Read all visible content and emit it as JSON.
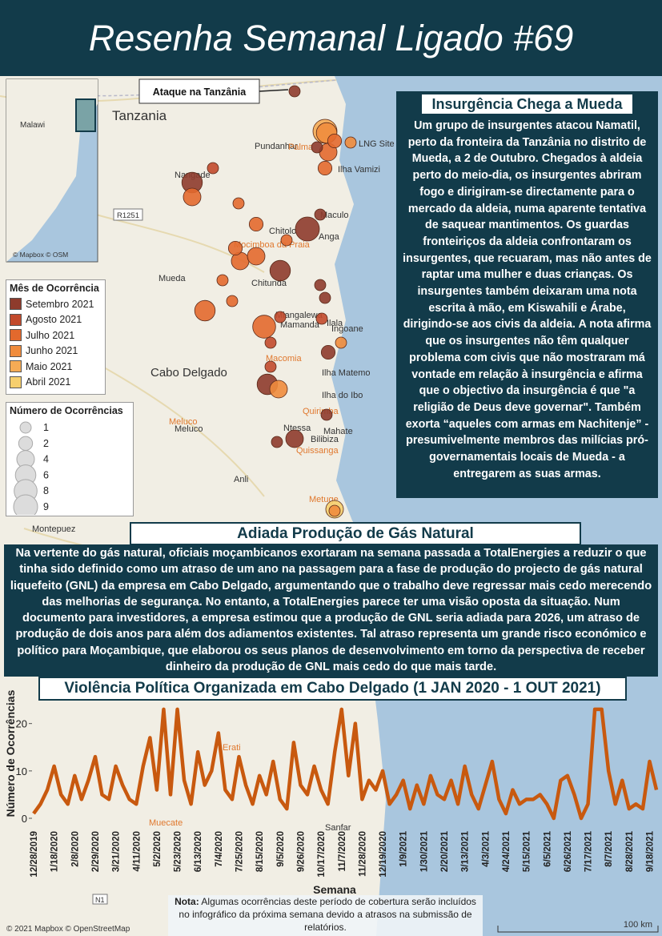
{
  "header": {
    "title": "Resenha Semanal Ligado #69"
  },
  "map": {
    "annotation": "Ataque na Tanzânia",
    "labels": [
      "Tanzania",
      "Malawi",
      "Pundanhar",
      "Palma",
      "LNG Site",
      "Ilha Vamizi",
      "Nangade",
      "R1251",
      "Maculo",
      "Chitolo",
      "Mocimboa da Praia",
      "Anga",
      "Mueda",
      "Chitunda",
      "Miangalewa",
      "Mamanda",
      "Macomia",
      "Ilala",
      "Ingoane",
      "Cabo Delgado",
      "Ilha Matemo",
      "Ilha do Ibo",
      "Quirimba",
      "Mahate",
      "Meluco",
      "Meluco",
      "Ntessa",
      "Bilibiza",
      "Quissanga",
      "Anli",
      "Metuge",
      "Montepuez",
      "Erati",
      "Muecate",
      "Sanfar",
      "N1"
    ],
    "inset_attribution": "© Mapbox © OSM",
    "attribution": "© 2021 Mapbox © OpenStreetMap",
    "scale": "100 km",
    "events": [
      {
        "lon": 40.29,
        "lat": -10.77,
        "month": "Setembro 2021",
        "count": 1
      },
      {
        "lon": 40.48,
        "lat": -11.02,
        "month": "Maio 2021",
        "count": 9
      },
      {
        "lon": 40.49,
        "lat": -11.03,
        "month": "Junho 2021",
        "count": 6
      },
      {
        "lon": 40.5,
        "lat": -11.15,
        "month": "Julho 2021",
        "count": 4
      },
      {
        "lon": 40.64,
        "lat": -11.09,
        "month": "Junho 2021",
        "count": 1
      },
      {
        "lon": 40.54,
        "lat": -11.08,
        "month": "Julho 2021",
        "count": 2
      },
      {
        "lon": 40.48,
        "lat": -11.25,
        "month": "Julho 2021",
        "count": 2
      },
      {
        "lon": 40.43,
        "lat": -11.12,
        "month": "Setembro 2021",
        "count": 1
      },
      {
        "lon": 39.78,
        "lat": -11.25,
        "month": "Agosto 2021",
        "count": 1
      },
      {
        "lon": 39.65,
        "lat": -11.34,
        "month": "Setembro 2021",
        "count": 6
      },
      {
        "lon": 39.65,
        "lat": -11.43,
        "month": "Julho 2021",
        "count": 4
      },
      {
        "lon": 39.94,
        "lat": -11.47,
        "month": "Julho 2021",
        "count": 1
      },
      {
        "lon": 40.45,
        "lat": -11.54,
        "month": "Setembro 2021",
        "count": 1
      },
      {
        "lon": 40.37,
        "lat": -11.63,
        "month": "Setembro 2021",
        "count": 9
      },
      {
        "lon": 40.24,
        "lat": -11.7,
        "month": "Julho 2021",
        "count": 1
      },
      {
        "lon": 40.05,
        "lat": -11.6,
        "month": "Julho 2021",
        "count": 2
      },
      {
        "lon": 39.92,
        "lat": -11.75,
        "month": "Julho 2021",
        "count": 2
      },
      {
        "lon": 39.95,
        "lat": -11.83,
        "month": "Julho 2021",
        "count": 4
      },
      {
        "lon": 40.05,
        "lat": -11.8,
        "month": "Julho 2021",
        "count": 4
      },
      {
        "lon": 40.2,
        "lat": -11.89,
        "month": "Setembro 2021",
        "count": 6
      },
      {
        "lon": 40.45,
        "lat": -11.98,
        "month": "Setembro 2021",
        "count": 1
      },
      {
        "lon": 39.84,
        "lat": -11.95,
        "month": "Julho 2021",
        "count": 1
      },
      {
        "lon": 39.9,
        "lat": -12.08,
        "month": "Julho 2021",
        "count": 1
      },
      {
        "lon": 39.73,
        "lat": -12.14,
        "month": "Julho 2021",
        "count": 6
      },
      {
        "lon": 40.1,
        "lat": -12.24,
        "month": "Julho 2021",
        "count": 8
      },
      {
        "lon": 40.2,
        "lat": -12.18,
        "month": "Agosto 2021",
        "count": 1
      },
      {
        "lon": 40.48,
        "lat": -12.06,
        "month": "Setembro 2021",
        "count": 1
      },
      {
        "lon": 40.46,
        "lat": -12.19,
        "month": "Agosto 2021",
        "count": 1
      },
      {
        "lon": 40.5,
        "lat": -12.4,
        "month": "Setembro 2021",
        "count": 2
      },
      {
        "lon": 40.58,
        "lat": -12.34,
        "month": "Junho 2021",
        "count": 1
      },
      {
        "lon": 40.14,
        "lat": -12.34,
        "month": "Agosto 2021",
        "count": 1
      },
      {
        "lon": 40.14,
        "lat": -12.49,
        "month": "Agosto 2021",
        "count": 1
      },
      {
        "lon": 40.12,
        "lat": -12.6,
        "month": "Setembro 2021",
        "count": 6
      },
      {
        "lon": 40.19,
        "lat": -12.63,
        "month": "Junho 2021",
        "count": 4
      },
      {
        "lon": 40.49,
        "lat": -12.79,
        "month": "Setembro 2021",
        "count": 1
      },
      {
        "lon": 40.18,
        "lat": -12.96,
        "month": "Setembro 2021",
        "count": 1
      },
      {
        "lon": 40.29,
        "lat": -12.94,
        "month": "Setembro 2021",
        "count": 4
      },
      {
        "lon": 40.54,
        "lat": -13.38,
        "month": "Abril 2021",
        "count": 4
      },
      {
        "lon": 40.54,
        "lat": -13.39,
        "month": "Junho 2021",
        "count": 1
      }
    ]
  },
  "legend_month": {
    "title": "Mês de Ocorrência",
    "items": [
      {
        "label": "Setembro 2021",
        "color": "#8e3b2c"
      },
      {
        "label": "Agosto 2021",
        "color": "#c24a2c"
      },
      {
        "label": "Julho 2021",
        "color": "#e3692d"
      },
      {
        "label": "Junho 2021",
        "color": "#f08c3d"
      },
      {
        "label": "Maio 2021",
        "color": "#f5ab55"
      },
      {
        "label": "Abril 2021",
        "color": "#f6cf6e"
      }
    ]
  },
  "legend_size": {
    "title": "Número de Ocorrências",
    "counts": [
      1,
      2,
      4,
      6,
      8,
      9
    ]
  },
  "article1": {
    "title": "Insurgência Chega a Mueda",
    "body": "Um grupo de insurgentes atacou Namatil, perto da fronteira da Tanzânia no distrito de Mueda, a 2 de Outubro. Chegados à aldeia perto do meio-dia, os insurgentes abriram fogo e dirigiram-se directamente para o mercado da aldeia, numa aparente tentativa de saquear mantimentos. Os guardas fronteiriços da aldeia confrontaram os insurgentes, que recuaram, mas não antes de raptar uma mulher e duas crianças. Os insurgentes também deixaram uma nota escrita à mão, em Kiswahili e Árabe, dirigindo-se aos civis da aldeia. A nota afirma que os insurgentes não têm qualquer problema com civis que não mostraram má vontade em relação à insurgência e afirma que o objectivo da insurgência é que \"a religião de Deus deve governar\". Também exorta “aqueles com armas em Nachitenje” - presumivelmente membros das milícias pró-governamentais locais de Mueda - a entregarem as suas armas."
  },
  "article2": {
    "title": "Adiada Produção de Gás Natural",
    "body": "Na vertente do gás natural, oficiais moçambicanos exortaram na semana passada a TotalEnergies a reduzir o que tinha sido definido como um atraso de um ano na passagem para a fase de produção do projecto de gás natural liquefeito (GNL) da empresa em Cabo Delgado, argumentando que o trabalho deve regressar mais cedo merecendo das melhorias de segurança. No entanto, a TotalEnergies parece ter uma visão oposta da situação. Num documento para investidores, a empresa estimou que a produção de GNL seria adiada para 2026, um atraso de produção de dois anos para além dos adiamentos existentes. Tal atraso representa um grande risco económico e político para Moçambique, que elaborou os seus planos de desenvolvimento em torno da perspectiva de receber dinheiro da produção de GNL mais cedo do que mais tarde."
  },
  "chart_data": {
    "type": "line",
    "title": "Violência Política Organizada em Cabo Delgado (1 JAN 2020 - 1 OUT 2021)",
    "x_label": "Semana",
    "y_label": "Número de Ocorrências",
    "categories": [
      "12/28/2019",
      null,
      null,
      "1/18/2020",
      null,
      null,
      "2/8/2020",
      null,
      null,
      "2/29/2020",
      null,
      null,
      "3/21/2020",
      null,
      null,
      "4/11/2020",
      null,
      null,
      "5/2/2020",
      null,
      null,
      "5/23/2020",
      null,
      null,
      "6/13/2020",
      null,
      null,
      "7/4/2020",
      null,
      null,
      "7/25/2020",
      null,
      null,
      "8/15/2020",
      null,
      null,
      "9/5/2020",
      null,
      null,
      "9/26/2020",
      null,
      null,
      "10/17/2020",
      null,
      null,
      "11/7/2020",
      null,
      null,
      "11/28/2020",
      null,
      null,
      "12/19/2020",
      null,
      null,
      "1/9/2021",
      null,
      null,
      "1/30/2021",
      null,
      null,
      "2/20/2021",
      null,
      null,
      "3/13/2021",
      null,
      null,
      "4/3/2021",
      null,
      null,
      "4/24/2021",
      null,
      null,
      "5/15/2021",
      null,
      null,
      "6/5/2021",
      null,
      null,
      "6/26/2021",
      null,
      null,
      "7/17/2021",
      null,
      null,
      "8/7/2021",
      null,
      null,
      "8/28/2021",
      null,
      null,
      "9/18/2021",
      null
    ],
    "series": [
      {
        "name": "Ocorrências",
        "color": "#c8590f",
        "values": [
          1,
          3,
          6,
          11,
          5,
          3,
          9,
          4,
          8,
          13,
          5,
          4,
          11,
          7,
          4,
          3,
          11,
          17,
          6,
          23,
          5,
          23,
          8,
          3,
          14,
          7,
          10,
          18,
          6,
          4,
          13,
          7,
          3,
          9,
          5,
          12,
          4,
          2,
          16,
          7,
          5,
          11,
          6,
          3,
          14,
          23,
          9,
          20,
          4,
          8,
          6,
          10,
          3,
          5,
          8,
          2,
          7,
          3,
          9,
          5,
          4,
          8,
          3,
          11,
          5,
          2,
          7,
          12,
          4,
          1,
          6,
          3,
          4,
          4,
          5,
          3,
          0,
          8,
          9,
          5,
          0,
          3,
          23,
          23,
          10,
          3,
          8,
          2,
          3,
          2,
          12,
          6
        ]
      }
    ],
    "ylim": [
      0,
      24
    ],
    "yticks": [
      0,
      10,
      20
    ],
    "grid": false
  },
  "note": {
    "label": "Nota:",
    "text": " Algumas ocorrências deste período de cobertura serão incluídos no infográfico da próxima semana devido a atrasos na submissão de relatórios."
  }
}
